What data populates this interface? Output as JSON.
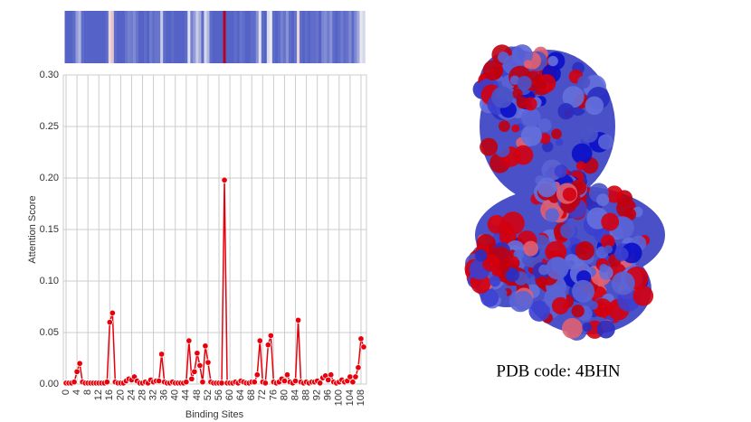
{
  "chart_data": {
    "type": "line",
    "x_label": "Binding Sites",
    "y_label": "Attention Score",
    "x": [
      0,
      1,
      2,
      3,
      4,
      5,
      6,
      7,
      8,
      9,
      10,
      11,
      12,
      13,
      14,
      15,
      16,
      17,
      18,
      19,
      20,
      21,
      22,
      23,
      24,
      25,
      26,
      27,
      28,
      29,
      30,
      31,
      32,
      33,
      34,
      35,
      36,
      37,
      38,
      39,
      40,
      41,
      42,
      43,
      44,
      45,
      46,
      47,
      48,
      49,
      50,
      51,
      52,
      53,
      54,
      55,
      56,
      57,
      58,
      59,
      60,
      61,
      62,
      63,
      64,
      65,
      66,
      67,
      68,
      69,
      70,
      71,
      72,
      73,
      74,
      75,
      76,
      77,
      78,
      79,
      80,
      81,
      82,
      83,
      84,
      85,
      86,
      87,
      88,
      89,
      90,
      91,
      92,
      93,
      94,
      95,
      96,
      97,
      98,
      99,
      100,
      101,
      102,
      103,
      104,
      105,
      106,
      107,
      108,
      109
    ],
    "values": [
      0.001,
      0.001,
      0.001,
      0.002,
      0.012,
      0.02,
      0.002,
      0.001,
      0.001,
      0.001,
      0.001,
      0.001,
      0.001,
      0.001,
      0.001,
      0.002,
      0.06,
      0.069,
      0.002,
      0.001,
      0.001,
      0.001,
      0.003,
      0.005,
      0.004,
      0.007,
      0.003,
      0.001,
      0.001,
      0.002,
      0.001,
      0.004,
      0.002,
      0.003,
      0.003,
      0.029,
      0.002,
      0.001,
      0.001,
      0.002,
      0.001,
      0.001,
      0.001,
      0.001,
      0.002,
      0.042,
      0.005,
      0.012,
      0.03,
      0.018,
      0.002,
      0.037,
      0.021,
      0.002,
      0.001,
      0.001,
      0.001,
      0.001,
      0.198,
      0.001,
      0.001,
      0.001,
      0.002,
      0.001,
      0.003,
      0.002,
      0.001,
      0.001,
      0.002,
      0.002,
      0.009,
      0.042,
      0.002,
      0.001,
      0.038,
      0.047,
      0.002,
      0.001,
      0.002,
      0.005,
      0.003,
      0.009,
      0.002,
      0.001,
      0.003,
      0.062,
      0.002,
      0.001,
      0.002,
      0.001,
      0.002,
      0.002,
      0.003,
      0.001,
      0.006,
      0.008,
      0.004,
      0.009,
      0.002,
      0.001,
      0.002,
      0.004,
      0.002,
      0.003,
      0.007,
      0.002,
      0.007,
      0.016,
      0.044,
      0.036
    ],
    "color": "#e8000b",
    "xlim": [
      -1,
      110
    ],
    "xticks": [
      0,
      4,
      8,
      12,
      16,
      20,
      24,
      28,
      32,
      36,
      40,
      44,
      48,
      52,
      56,
      60,
      64,
      68,
      72,
      76,
      80,
      84,
      88,
      92,
      96,
      100,
      104,
      108
    ],
    "ylim": [
      0,
      0.3
    ],
    "yticks": [
      {
        "value": 0,
        "label": "0.00"
      },
      {
        "value": 0.05,
        "label": "0.05"
      },
      {
        "value": 0.1,
        "label": "0.10"
      },
      {
        "value": 0.15,
        "label": "0.15"
      },
      {
        "value": 0.2,
        "label": "0.20"
      },
      {
        "value": 0.25,
        "label": "0.25"
      },
      {
        "value": 0.3,
        "label": "0.30"
      }
    ],
    "grid": true,
    "heatmap_strip": true,
    "caption": "PDB code: 4BHN"
  }
}
